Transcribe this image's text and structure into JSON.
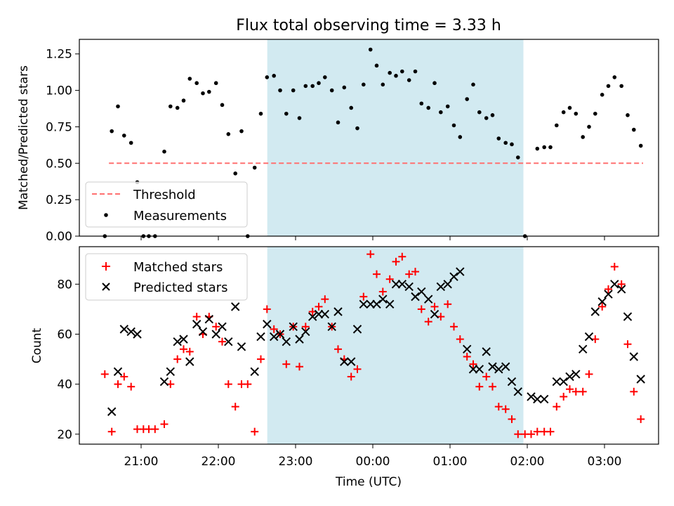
{
  "figure": {
    "title": "Flux total observing time = 3.33 h",
    "xlabel": "Time (UTC)",
    "x_tick_labels": [
      "21:00",
      "22:00",
      "23:00",
      "00:00",
      "01:00",
      "02:00",
      "03:00"
    ],
    "colors": {
      "shade": "#add8e6",
      "threshold": "#ff7070",
      "measurement": "#000000",
      "matched": "#ff0000",
      "predicted": "#000000"
    }
  },
  "chart_data": [
    {
      "type": "scatter",
      "ylabel": "Matched/Predicted stars",
      "x_unit": "hours since 21:00 UTC",
      "xlim": [
        -0.8,
        6.7
      ],
      "ylim": [
        0,
        1.35
      ],
      "y_tick_labels": [
        "0.00",
        "0.25",
        "0.50",
        "0.75",
        "1.00",
        "1.25"
      ],
      "y_ticks": [
        0,
        0.25,
        0.5,
        0.75,
        1.0,
        1.25
      ],
      "grid": false,
      "legend_position": "lower-left",
      "shaded_span": [
        "22:38",
        "01:57"
      ],
      "threshold": {
        "name": "Threshold",
        "value": 0.5,
        "x_range": [
          "20:35",
          "03:30"
        ]
      },
      "series": [
        {
          "name": "Measurements",
          "points": [
            [
              -0.47,
              0.0
            ],
            [
              -0.38,
              0.72
            ],
            [
              -0.3,
              0.89
            ],
            [
              -0.22,
              0.69
            ],
            [
              -0.13,
              0.64
            ],
            [
              -0.05,
              0.37
            ],
            [
              0.03,
              0.0
            ],
            [
              0.1,
              0.0
            ],
            [
              0.18,
              0.0
            ],
            [
              0.3,
              0.58
            ],
            [
              0.38,
              0.89
            ],
            [
              0.47,
              0.88
            ],
            [
              0.55,
              0.93
            ],
            [
              0.63,
              1.08
            ],
            [
              0.72,
              1.05
            ],
            [
              0.8,
              0.98
            ],
            [
              0.88,
              0.99
            ],
            [
              0.97,
              1.05
            ],
            [
              1.05,
              0.9
            ],
            [
              1.13,
              0.7
            ],
            [
              1.22,
              0.43
            ],
            [
              1.3,
              0.72
            ],
            [
              1.38,
              0.0
            ],
            [
              1.47,
              0.47
            ],
            [
              1.55,
              0.84
            ],
            [
              1.63,
              1.09
            ],
            [
              1.72,
              1.1
            ],
            [
              1.8,
              1.0
            ],
            [
              1.88,
              0.84
            ],
            [
              1.97,
              1.0
            ],
            [
              2.05,
              0.81
            ],
            [
              2.13,
              1.03
            ],
            [
              2.22,
              1.03
            ],
            [
              2.3,
              1.05
            ],
            [
              2.38,
              1.09
            ],
            [
              2.47,
              1.0
            ],
            [
              2.55,
              0.78
            ],
            [
              2.63,
              1.02
            ],
            [
              2.72,
              0.88
            ],
            [
              2.8,
              0.74
            ],
            [
              2.88,
              1.04
            ],
            [
              2.97,
              1.28
            ],
            [
              3.05,
              1.17
            ],
            [
              3.13,
              1.04
            ],
            [
              3.22,
              1.12
            ],
            [
              3.3,
              1.1
            ],
            [
              3.38,
              1.13
            ],
            [
              3.47,
              1.07
            ],
            [
              3.55,
              1.13
            ],
            [
              3.63,
              0.91
            ],
            [
              3.72,
              0.88
            ],
            [
              3.8,
              1.05
            ],
            [
              3.88,
              0.85
            ],
            [
              3.97,
              0.89
            ],
            [
              4.05,
              0.76
            ],
            [
              4.13,
              0.68
            ],
            [
              4.22,
              0.94
            ],
            [
              4.3,
              1.04
            ],
            [
              4.38,
              0.85
            ],
            [
              4.47,
              0.81
            ],
            [
              4.55,
              0.83
            ],
            [
              4.63,
              0.67
            ],
            [
              4.72,
              0.64
            ],
            [
              4.8,
              0.63
            ],
            [
              4.88,
              0.54
            ],
            [
              4.97,
              0.0
            ],
            [
              5.13,
              0.6
            ],
            [
              5.22,
              0.61
            ],
            [
              5.3,
              0.61
            ],
            [
              5.38,
              0.76
            ],
            [
              5.47,
              0.85
            ],
            [
              5.55,
              0.88
            ],
            [
              5.63,
              0.84
            ],
            [
              5.72,
              0.68
            ],
            [
              5.8,
              0.75
            ],
            [
              5.88,
              0.84
            ],
            [
              5.97,
              0.97
            ],
            [
              6.05,
              1.03
            ],
            [
              6.13,
              1.09
            ],
            [
              6.22,
              1.03
            ],
            [
              6.3,
              0.83
            ],
            [
              6.38,
              0.73
            ],
            [
              6.47,
              0.62
            ]
          ]
        }
      ]
    },
    {
      "type": "scatter",
      "ylabel": "Count",
      "x_unit": "hours since 21:00 UTC",
      "xlim": [
        -0.8,
        6.7
      ],
      "ylim": [
        16,
        95
      ],
      "y_tick_labels": [
        "20",
        "40",
        "60",
        "80"
      ],
      "y_ticks": [
        20,
        40,
        60,
        80
      ],
      "grid": false,
      "legend_position": "upper-left",
      "shaded_span": [
        "22:38",
        "01:57"
      ],
      "series": [
        {
          "name": "Matched stars",
          "marker": "plus",
          "points": [
            [
              -0.47,
              44
            ],
            [
              -0.38,
              21
            ],
            [
              -0.3,
              40
            ],
            [
              -0.22,
              43
            ],
            [
              -0.13,
              39
            ],
            [
              -0.05,
              22
            ],
            [
              0.03,
              22
            ],
            [
              0.1,
              22
            ],
            [
              0.18,
              22
            ],
            [
              0.3,
              24
            ],
            [
              0.38,
              40
            ],
            [
              0.47,
              50
            ],
            [
              0.55,
              54
            ],
            [
              0.63,
              53
            ],
            [
              0.72,
              67
            ],
            [
              0.8,
              60
            ],
            [
              0.88,
              67
            ],
            [
              0.97,
              63
            ],
            [
              1.05,
              57
            ],
            [
              1.13,
              40
            ],
            [
              1.22,
              31
            ],
            [
              1.3,
              40
            ],
            [
              1.38,
              40
            ],
            [
              1.47,
              21
            ],
            [
              1.55,
              50
            ],
            [
              1.63,
              70
            ],
            [
              1.72,
              62
            ],
            [
              1.8,
              60
            ],
            [
              1.88,
              48
            ],
            [
              1.97,
              63
            ],
            [
              2.05,
              47
            ],
            [
              2.13,
              63
            ],
            [
              2.22,
              69
            ],
            [
              2.3,
              71
            ],
            [
              2.38,
              74
            ],
            [
              2.47,
              63
            ],
            [
              2.55,
              54
            ],
            [
              2.63,
              50
            ],
            [
              2.72,
              43
            ],
            [
              2.8,
              46
            ],
            [
              2.88,
              75
            ],
            [
              2.97,
              92
            ],
            [
              3.05,
              84
            ],
            [
              3.13,
              77
            ],
            [
              3.22,
              82
            ],
            [
              3.3,
              89
            ],
            [
              3.38,
              91
            ],
            [
              3.47,
              84
            ],
            [
              3.55,
              85
            ],
            [
              3.63,
              70
            ],
            [
              3.72,
              65
            ],
            [
              3.8,
              71
            ],
            [
              3.88,
              67
            ],
            [
              3.97,
              72
            ],
            [
              4.05,
              63
            ],
            [
              4.13,
              58
            ],
            [
              4.22,
              51
            ],
            [
              4.3,
              48
            ],
            [
              4.38,
              39
            ],
            [
              4.47,
              43
            ],
            [
              4.55,
              39
            ],
            [
              4.63,
              31
            ],
            [
              4.72,
              30
            ],
            [
              4.8,
              26
            ],
            [
              4.88,
              20
            ],
            [
              4.97,
              20
            ],
            [
              5.05,
              20
            ],
            [
              5.13,
              21
            ],
            [
              5.22,
              21
            ],
            [
              5.3,
              21
            ],
            [
              5.38,
              31
            ],
            [
              5.47,
              35
            ],
            [
              5.55,
              38
            ],
            [
              5.63,
              37
            ],
            [
              5.72,
              37
            ],
            [
              5.8,
              44
            ],
            [
              5.88,
              58
            ],
            [
              5.97,
              71
            ],
            [
              6.05,
              78
            ],
            [
              6.13,
              87
            ],
            [
              6.22,
              80
            ],
            [
              6.3,
              56
            ],
            [
              6.38,
              37
            ],
            [
              6.47,
              26
            ]
          ]
        },
        {
          "name": "Predicted stars",
          "marker": "x",
          "points": [
            [
              -0.38,
              29
            ],
            [
              -0.3,
              45
            ],
            [
              -0.22,
              62
            ],
            [
              -0.13,
              61
            ],
            [
              -0.05,
              60
            ],
            [
              0.3,
              41
            ],
            [
              0.38,
              45
            ],
            [
              0.47,
              57
            ],
            [
              0.55,
              58
            ],
            [
              0.63,
              49
            ],
            [
              0.72,
              64
            ],
            [
              0.8,
              61
            ],
            [
              0.88,
              66
            ],
            [
              0.97,
              60
            ],
            [
              1.05,
              63
            ],
            [
              1.13,
              57
            ],
            [
              1.22,
              71
            ],
            [
              1.3,
              55
            ],
            [
              1.47,
              45
            ],
            [
              1.55,
              59
            ],
            [
              1.63,
              64
            ],
            [
              1.72,
              59
            ],
            [
              1.8,
              60
            ],
            [
              1.88,
              57
            ],
            [
              1.97,
              63
            ],
            [
              2.05,
              58
            ],
            [
              2.13,
              61
            ],
            [
              2.22,
              67
            ],
            [
              2.3,
              68
            ],
            [
              2.38,
              68
            ],
            [
              2.47,
              63
            ],
            [
              2.55,
              69
            ],
            [
              2.63,
              49
            ],
            [
              2.72,
              49
            ],
            [
              2.8,
              62
            ],
            [
              2.88,
              72
            ],
            [
              2.97,
              72
            ],
            [
              3.05,
              72
            ],
            [
              3.13,
              74
            ],
            [
              3.22,
              72
            ],
            [
              3.3,
              80
            ],
            [
              3.38,
              80
            ],
            [
              3.47,
              79
            ],
            [
              3.55,
              75
            ],
            [
              3.63,
              77
            ],
            [
              3.72,
              74
            ],
            [
              3.8,
              68
            ],
            [
              3.88,
              79
            ],
            [
              3.97,
              80
            ],
            [
              4.05,
              83
            ],
            [
              4.13,
              85
            ],
            [
              4.22,
              54
            ],
            [
              4.3,
              46
            ],
            [
              4.38,
              46
            ],
            [
              4.47,
              53
            ],
            [
              4.55,
              47
            ],
            [
              4.63,
              46
            ],
            [
              4.72,
              47
            ],
            [
              4.8,
              41
            ],
            [
              4.88,
              37
            ],
            [
              5.05,
              35
            ],
            [
              5.13,
              34
            ],
            [
              5.22,
              34
            ],
            [
              5.38,
              41
            ],
            [
              5.47,
              41
            ],
            [
              5.55,
              43
            ],
            [
              5.63,
              44
            ],
            [
              5.72,
              54
            ],
            [
              5.8,
              59
            ],
            [
              5.88,
              69
            ],
            [
              5.97,
              73
            ],
            [
              6.05,
              76
            ],
            [
              6.13,
              80
            ],
            [
              6.22,
              78
            ],
            [
              6.3,
              67
            ],
            [
              6.38,
              51
            ],
            [
              6.47,
              42
            ]
          ]
        }
      ]
    }
  ]
}
